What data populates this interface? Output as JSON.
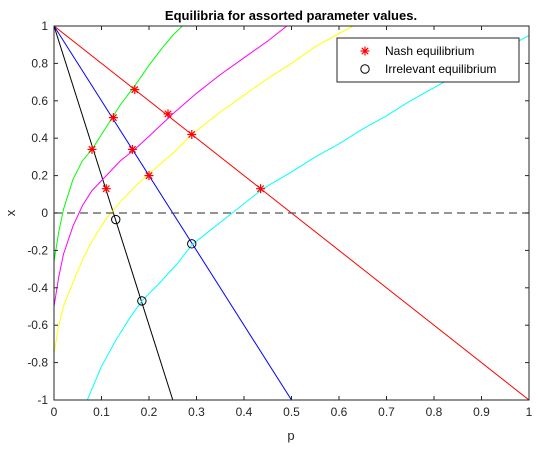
{
  "chart_data": {
    "type": "line",
    "title": "Equilibria for assorted parameter values.",
    "xlabel": "p",
    "ylabel": "x",
    "xlim": [
      0,
      1
    ],
    "ylim": [
      -1,
      1
    ],
    "xticks": [
      0,
      0.1,
      0.2,
      0.3,
      0.4,
      0.5,
      0.6,
      0.7,
      0.8,
      0.9,
      1
    ],
    "yticks": [
      -1,
      -0.8,
      -0.6,
      -0.4,
      -0.2,
      0,
      0.2,
      0.4,
      0.6,
      0.8,
      1
    ],
    "xtick_labels": [
      "0",
      "0.1",
      "0.2",
      "0.3",
      "0.4",
      "0.5",
      "0.6",
      "0.7",
      "0.8",
      "0.9",
      "1"
    ],
    "ytick_labels": [
      "-1",
      "-0.8",
      "-0.6",
      "-0.4",
      "-0.2",
      "0",
      "0.2",
      "0.4",
      "0.6",
      "0.8",
      "1"
    ],
    "grid": false,
    "legend_position": "top-right",
    "reference_line": {
      "y": 0,
      "style": "dashed",
      "color": "#555555"
    },
    "lines": [
      {
        "color": "#ff0000",
        "kind": "straight",
        "points": [
          [
            0,
            1
          ],
          [
            1,
            -1
          ]
        ]
      },
      {
        "color": "#0000ff",
        "kind": "straight",
        "points": [
          [
            0,
            1
          ],
          [
            0.5,
            -1
          ]
        ]
      },
      {
        "color": "#000000",
        "kind": "straight",
        "points": [
          [
            0,
            1
          ],
          [
            0.25,
            -1
          ]
        ]
      },
      {
        "color": "#00ff00",
        "kind": "curve",
        "points": [
          [
            0,
            -0.26
          ],
          [
            0.01,
            -0.1
          ],
          [
            0.02,
            0.02
          ],
          [
            0.04,
            0.18
          ],
          [
            0.06,
            0.28
          ],
          [
            0.08,
            0.34
          ],
          [
            0.11,
            0.46
          ],
          [
            0.14,
            0.58
          ],
          [
            0.17,
            0.68
          ],
          [
            0.2,
            0.79
          ],
          [
            0.23,
            0.89
          ],
          [
            0.25,
            0.95
          ],
          [
            0.27,
            1.0
          ]
        ]
      },
      {
        "color": "#ff00ff",
        "kind": "curve",
        "points": [
          [
            0,
            -0.5
          ],
          [
            0.01,
            -0.34
          ],
          [
            0.02,
            -0.22
          ],
          [
            0.04,
            -0.07
          ],
          [
            0.06,
            0.04
          ],
          [
            0.08,
            0.12
          ],
          [
            0.11,
            0.2
          ],
          [
            0.14,
            0.28
          ],
          [
            0.17,
            0.34
          ],
          [
            0.2,
            0.41
          ],
          [
            0.25,
            0.53
          ],
          [
            0.3,
            0.64
          ],
          [
            0.35,
            0.74
          ],
          [
            0.4,
            0.83
          ],
          [
            0.45,
            0.92
          ],
          [
            0.49,
            1.0
          ]
        ]
      },
      {
        "color": "#ffff00",
        "kind": "curve",
        "points": [
          [
            0,
            -0.75
          ],
          [
            0.01,
            -0.6
          ],
          [
            0.02,
            -0.5
          ],
          [
            0.04,
            -0.37
          ],
          [
            0.06,
            -0.25
          ],
          [
            0.08,
            -0.15
          ],
          [
            0.11,
            -0.03
          ],
          [
            0.14,
            0.06
          ],
          [
            0.17,
            0.14
          ],
          [
            0.2,
            0.21
          ],
          [
            0.25,
            0.32
          ],
          [
            0.29,
            0.42
          ],
          [
            0.35,
            0.54
          ],
          [
            0.4,
            0.63
          ],
          [
            0.45,
            0.72
          ],
          [
            0.5,
            0.8
          ],
          [
            0.55,
            0.89
          ],
          [
            0.6,
            0.96
          ],
          [
            0.63,
            1.0
          ]
        ]
      },
      {
        "color": "#00ffff",
        "kind": "curve",
        "points": [
          [
            0.07,
            -1.0
          ],
          [
            0.1,
            -0.82
          ],
          [
            0.13,
            -0.68
          ],
          [
            0.16,
            -0.56
          ],
          [
            0.185,
            -0.47
          ],
          [
            0.22,
            -0.38
          ],
          [
            0.26,
            -0.27
          ],
          [
            0.29,
            -0.17
          ],
          [
            0.33,
            -0.09
          ],
          [
            0.37,
            -0.01
          ],
          [
            0.41,
            0.07
          ],
          [
            0.44,
            0.13
          ],
          [
            0.5,
            0.22
          ],
          [
            0.55,
            0.3
          ],
          [
            0.6,
            0.37
          ],
          [
            0.65,
            0.45
          ],
          [
            0.7,
            0.52
          ],
          [
            0.75,
            0.6
          ],
          [
            0.8,
            0.67
          ],
          [
            0.85,
            0.74
          ],
          [
            0.9,
            0.81
          ],
          [
            0.95,
            0.88
          ],
          [
            1.0,
            0.95
          ]
        ]
      }
    ],
    "nash_equilibria": [
      [
        0.08,
        0.34
      ],
      [
        0.11,
        0.13
      ],
      [
        0.125,
        0.51
      ],
      [
        0.165,
        0.34
      ],
      [
        0.17,
        0.66
      ],
      [
        0.2,
        0.2
      ],
      [
        0.24,
        0.53
      ],
      [
        0.29,
        0.42
      ],
      [
        0.435,
        0.13
      ]
    ],
    "irrelevant_equilibria": [
      [
        0.13,
        -0.035
      ],
      [
        0.185,
        -0.47
      ],
      [
        0.29,
        -0.165
      ]
    ],
    "legend": [
      {
        "label": "Nash equilibrium",
        "marker": "*",
        "color": "#ff0000"
      },
      {
        "label": "Irrelevant equilibrium",
        "marker": "o",
        "color": "#000000"
      }
    ]
  }
}
